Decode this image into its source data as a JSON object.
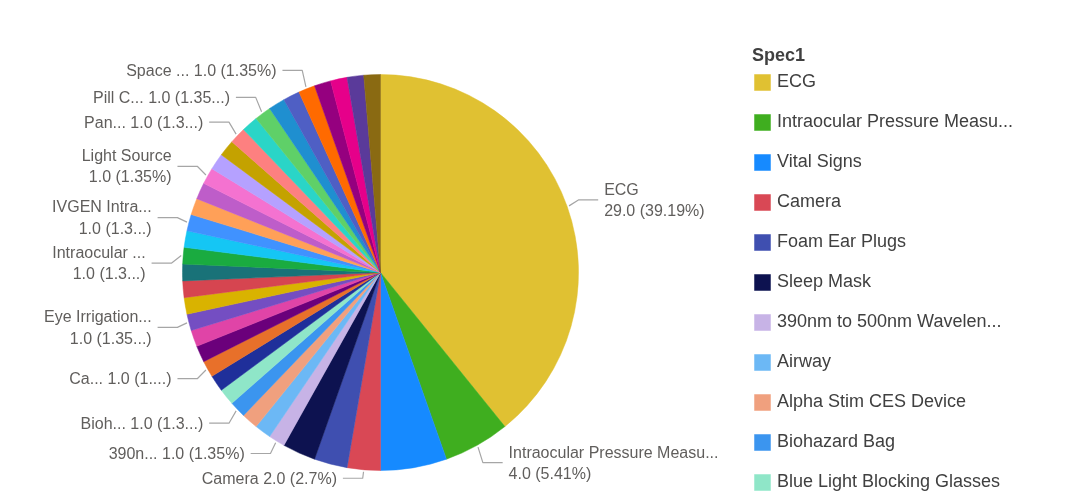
{
  "chart_data": {
    "type": "pie",
    "legend_title": "Spec1",
    "legend": "right",
    "categories": [
      "ECG",
      "Intraocular Pressure Measu...",
      "Vital Signs",
      "Camera",
      "Foam Ear Plugs",
      "Sleep Mask",
      "390nm to 500nm Wavelen...",
      "Airway",
      "Alpha Stim CES Device",
      "Biohazard Bag",
      "Blue Light Blocking Glasses",
      null,
      null,
      null,
      null,
      null,
      null,
      null,
      null,
      null,
      null,
      null,
      null,
      null,
      null,
      null,
      null,
      null,
      null,
      null,
      null,
      null,
      null,
      null,
      null,
      null,
      null
    ],
    "values": [
      29,
      4,
      4,
      2,
      2,
      2,
      1,
      1,
      1,
      1,
      1,
      1,
      1,
      1,
      1,
      1,
      1,
      1,
      1,
      1,
      1,
      1,
      1,
      1,
      1,
      1,
      1,
      1,
      1,
      1,
      1,
      1,
      1,
      1,
      1,
      1,
      1
    ],
    "colors": [
      "#e0c132",
      "#3fae1f",
      "#168aff",
      "#d94855",
      "#3f4fb0",
      "#0d1250",
      "#c7b3e6",
      "#6cb8f5",
      "#f0a07e",
      "#3b95ef",
      "#8fe6c8",
      "#1f2f9a",
      "#e8702a",
      "#6b007b",
      "#e044a7",
      "#744ec2",
      "#d9b300",
      "#d64550",
      "#197278",
      "#1aab40",
      "#15c6f4",
      "#4092ff",
      "#ffa058",
      "#be5dc9",
      "#f472d0",
      "#b5a1ff",
      "#c4a200",
      "#fd8080",
      "#2ad5c7",
      "#5fd068",
      "#1f8fd0",
      "#4f5fc4",
      "#ff6a00",
      "#95007f",
      "#e6008a",
      "#5a3a9a",
      "#8a6a12"
    ],
    "value_labels": [
      "ECG\n29.0 (39.19%)",
      "Intraocular Pressure Measu...\n4.0 (5.41%)",
      null,
      "Camera 2.0 (2.7%)",
      null,
      null,
      "390n... 1.0 (1.35%)",
      null,
      null,
      "Bioh... 1.0 (1.3...)",
      null,
      null,
      "Ca... 1.0 (1....)",
      null,
      null,
      "Eye Irrigation...\n1.0 (1.35...)",
      null,
      null,
      null,
      "Intraocular ...\n1.0 (1.3...)",
      null,
      "IVGEN Intra...\n1.0 (1.3...)",
      null,
      null,
      "Light Source\n1.0 (1.35%)",
      null,
      null,
      "Pan... 1.0 (1.3...)",
      null,
      "Pill C... 1.0 (1.35...)",
      null,
      null,
      "Space ... 1.0 (1.35%)",
      null,
      null,
      null,
      null
    ]
  }
}
